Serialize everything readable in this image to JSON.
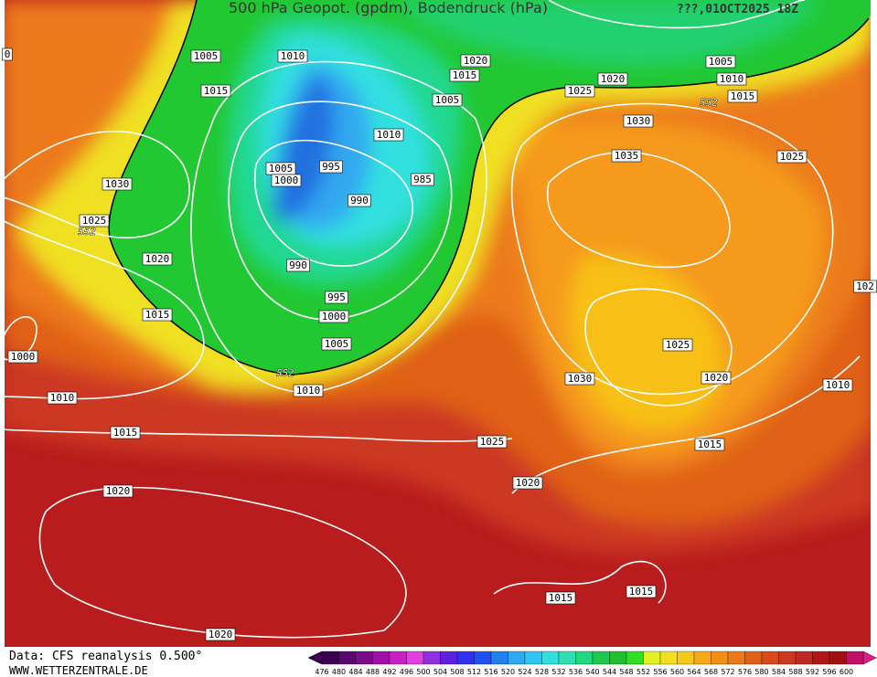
{
  "header": {
    "title": "500 hPa Geopot. (gpdm), Bodendruck (hPa)",
    "date": "???,01OCT2025 18Z"
  },
  "isobar_labels": [
    "0",
    "1005",
    "1010",
    "1015",
    "1020",
    "1015",
    "1005",
    "1025",
    "1020",
    "1005",
    "1010",
    "1015",
    "552",
    "1030",
    "1010",
    "1035",
    "1025",
    "1005",
    "995",
    "1000",
    "985",
    "990",
    "1030",
    "1025",
    "552",
    "1020",
    "990",
    "995",
    "1015",
    "1000",
    "1005",
    "1000",
    "552",
    "1010",
    "1010",
    "1025",
    "1030",
    "1020",
    "1010",
    "102",
    "1015",
    "1025",
    "1015",
    "1020",
    "1020",
    "1015",
    "1015",
    "1020"
  ],
  "legend": {
    "items": [
      {
        "label": 476,
        "color": "#3c0050"
      },
      {
        "label": 480,
        "color": "#5a0a6e"
      },
      {
        "label": 484,
        "color": "#7a0a8a"
      },
      {
        "label": 488,
        "color": "#a010a8"
      },
      {
        "label": 492,
        "color": "#c820c8"
      },
      {
        "label": 496,
        "color": "#e040e0"
      },
      {
        "label": 500,
        "color": "#9030e0"
      },
      {
        "label": 504,
        "color": "#6020e0"
      },
      {
        "label": 508,
        "color": "#3030f0"
      },
      {
        "label": 512,
        "color": "#2050f0"
      },
      {
        "label": 516,
        "color": "#2080f0"
      },
      {
        "label": 520,
        "color": "#30a8f0"
      },
      {
        "label": 524,
        "color": "#30c8f0"
      },
      {
        "label": 528,
        "color": "#30e0e0"
      },
      {
        "label": 532,
        "color": "#30e0b0"
      },
      {
        "label": 536,
        "color": "#20d880"
      },
      {
        "label": 540,
        "color": "#20c850"
      },
      {
        "label": 544,
        "color": "#20c030"
      },
      {
        "label": 548,
        "color": "#30e020"
      },
      {
        "label": 552,
        "color": "#e0f020"
      },
      {
        "label": 556,
        "color": "#f0e020"
      },
      {
        "label": 560,
        "color": "#f8c818"
      },
      {
        "label": 564,
        "color": "#f8a818"
      },
      {
        "label": 568,
        "color": "#f09018"
      },
      {
        "label": 572,
        "color": "#ec7a1a"
      },
      {
        "label": 576,
        "color": "#e06018"
      },
      {
        "label": 580,
        "color": "#d84a1e"
      },
      {
        "label": 584,
        "color": "#cc3820"
      },
      {
        "label": 588,
        "color": "#c02820"
      },
      {
        "label": 592,
        "color": "#b01818"
      },
      {
        "label": 596,
        "color": "#a01010"
      },
      {
        "label": 600,
        "color": "#c0106a"
      }
    ]
  },
  "footer": {
    "source": "Data: CFS reanalysis 0.500°",
    "site": "WWW.WETTERZENTRALE.DE"
  }
}
